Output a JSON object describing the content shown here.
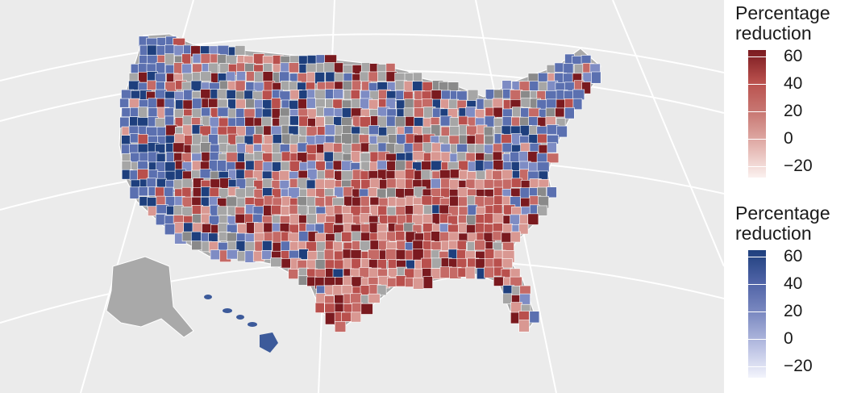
{
  "map": {
    "description_colors": {
      "background": "#ebebeb",
      "no_data": "#a6a6a6",
      "red_dark": "#7a1a1f",
      "red_mid": "#b9504d",
      "red_light": "#f2dcd9",
      "blue_dark": "#1e3f7d",
      "blue_mid": "#5b70b0",
      "blue_light": "#eef0fb",
      "borders": "#ffffff"
    }
  },
  "legends": [
    {
      "title_line1": "Percentage",
      "title_line2": "reduction",
      "scheme": "red",
      "colors": [
        "#7a1a1f",
        "#b9504d",
        "#c97a75",
        "#e3b3ae",
        "#fbf1ef"
      ],
      "ticks": [
        "60",
        "40",
        "20",
        "0",
        "−20"
      ]
    },
    {
      "title_line1": "Percentage",
      "title_line2": "reduction",
      "scheme": "blue",
      "colors": [
        "#1e3f7d",
        "#4f63a6",
        "#7d8bc2",
        "#b8bfe2",
        "#f3f4fc"
      ],
      "ticks": [
        "60",
        "40",
        "20",
        "0",
        "−20"
      ]
    }
  ]
}
